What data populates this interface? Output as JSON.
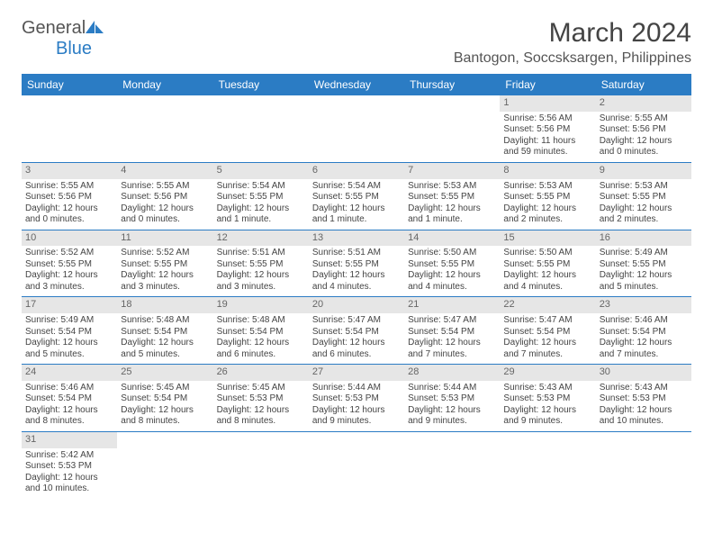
{
  "logo": {
    "part1": "General",
    "part2": "Blue"
  },
  "title": "March 2024",
  "location": "Bantogon, Soccsksargen, Philippines",
  "colors": {
    "header_bg": "#2b7cc4",
    "day_header_bg": "#e6e6e6",
    "text": "#444444"
  },
  "day_headers": [
    "Sunday",
    "Monday",
    "Tuesday",
    "Wednesday",
    "Thursday",
    "Friday",
    "Saturday"
  ],
  "weeks": [
    [
      null,
      null,
      null,
      null,
      null,
      {
        "n": "1",
        "sr": "Sunrise: 5:56 AM",
        "ss": "Sunset: 5:56 PM",
        "dl": "Daylight: 11 hours and 59 minutes."
      },
      {
        "n": "2",
        "sr": "Sunrise: 5:55 AM",
        "ss": "Sunset: 5:56 PM",
        "dl": "Daylight: 12 hours and 0 minutes."
      }
    ],
    [
      {
        "n": "3",
        "sr": "Sunrise: 5:55 AM",
        "ss": "Sunset: 5:56 PM",
        "dl": "Daylight: 12 hours and 0 minutes."
      },
      {
        "n": "4",
        "sr": "Sunrise: 5:55 AM",
        "ss": "Sunset: 5:56 PM",
        "dl": "Daylight: 12 hours and 0 minutes."
      },
      {
        "n": "5",
        "sr": "Sunrise: 5:54 AM",
        "ss": "Sunset: 5:55 PM",
        "dl": "Daylight: 12 hours and 1 minute."
      },
      {
        "n": "6",
        "sr": "Sunrise: 5:54 AM",
        "ss": "Sunset: 5:55 PM",
        "dl": "Daylight: 12 hours and 1 minute."
      },
      {
        "n": "7",
        "sr": "Sunrise: 5:53 AM",
        "ss": "Sunset: 5:55 PM",
        "dl": "Daylight: 12 hours and 1 minute."
      },
      {
        "n": "8",
        "sr": "Sunrise: 5:53 AM",
        "ss": "Sunset: 5:55 PM",
        "dl": "Daylight: 12 hours and 2 minutes."
      },
      {
        "n": "9",
        "sr": "Sunrise: 5:53 AM",
        "ss": "Sunset: 5:55 PM",
        "dl": "Daylight: 12 hours and 2 minutes."
      }
    ],
    [
      {
        "n": "10",
        "sr": "Sunrise: 5:52 AM",
        "ss": "Sunset: 5:55 PM",
        "dl": "Daylight: 12 hours and 3 minutes."
      },
      {
        "n": "11",
        "sr": "Sunrise: 5:52 AM",
        "ss": "Sunset: 5:55 PM",
        "dl": "Daylight: 12 hours and 3 minutes."
      },
      {
        "n": "12",
        "sr": "Sunrise: 5:51 AM",
        "ss": "Sunset: 5:55 PM",
        "dl": "Daylight: 12 hours and 3 minutes."
      },
      {
        "n": "13",
        "sr": "Sunrise: 5:51 AM",
        "ss": "Sunset: 5:55 PM",
        "dl": "Daylight: 12 hours and 4 minutes."
      },
      {
        "n": "14",
        "sr": "Sunrise: 5:50 AM",
        "ss": "Sunset: 5:55 PM",
        "dl": "Daylight: 12 hours and 4 minutes."
      },
      {
        "n": "15",
        "sr": "Sunrise: 5:50 AM",
        "ss": "Sunset: 5:55 PM",
        "dl": "Daylight: 12 hours and 4 minutes."
      },
      {
        "n": "16",
        "sr": "Sunrise: 5:49 AM",
        "ss": "Sunset: 5:55 PM",
        "dl": "Daylight: 12 hours and 5 minutes."
      }
    ],
    [
      {
        "n": "17",
        "sr": "Sunrise: 5:49 AM",
        "ss": "Sunset: 5:54 PM",
        "dl": "Daylight: 12 hours and 5 minutes."
      },
      {
        "n": "18",
        "sr": "Sunrise: 5:48 AM",
        "ss": "Sunset: 5:54 PM",
        "dl": "Daylight: 12 hours and 5 minutes."
      },
      {
        "n": "19",
        "sr": "Sunrise: 5:48 AM",
        "ss": "Sunset: 5:54 PM",
        "dl": "Daylight: 12 hours and 6 minutes."
      },
      {
        "n": "20",
        "sr": "Sunrise: 5:47 AM",
        "ss": "Sunset: 5:54 PM",
        "dl": "Daylight: 12 hours and 6 minutes."
      },
      {
        "n": "21",
        "sr": "Sunrise: 5:47 AM",
        "ss": "Sunset: 5:54 PM",
        "dl": "Daylight: 12 hours and 7 minutes."
      },
      {
        "n": "22",
        "sr": "Sunrise: 5:47 AM",
        "ss": "Sunset: 5:54 PM",
        "dl": "Daylight: 12 hours and 7 minutes."
      },
      {
        "n": "23",
        "sr": "Sunrise: 5:46 AM",
        "ss": "Sunset: 5:54 PM",
        "dl": "Daylight: 12 hours and 7 minutes."
      }
    ],
    [
      {
        "n": "24",
        "sr": "Sunrise: 5:46 AM",
        "ss": "Sunset: 5:54 PM",
        "dl": "Daylight: 12 hours and 8 minutes."
      },
      {
        "n": "25",
        "sr": "Sunrise: 5:45 AM",
        "ss": "Sunset: 5:54 PM",
        "dl": "Daylight: 12 hours and 8 minutes."
      },
      {
        "n": "26",
        "sr": "Sunrise: 5:45 AM",
        "ss": "Sunset: 5:53 PM",
        "dl": "Daylight: 12 hours and 8 minutes."
      },
      {
        "n": "27",
        "sr": "Sunrise: 5:44 AM",
        "ss": "Sunset: 5:53 PM",
        "dl": "Daylight: 12 hours and 9 minutes."
      },
      {
        "n": "28",
        "sr": "Sunrise: 5:44 AM",
        "ss": "Sunset: 5:53 PM",
        "dl": "Daylight: 12 hours and 9 minutes."
      },
      {
        "n": "29",
        "sr": "Sunrise: 5:43 AM",
        "ss": "Sunset: 5:53 PM",
        "dl": "Daylight: 12 hours and 9 minutes."
      },
      {
        "n": "30",
        "sr": "Sunrise: 5:43 AM",
        "ss": "Sunset: 5:53 PM",
        "dl": "Daylight: 12 hours and 10 minutes."
      }
    ],
    [
      {
        "n": "31",
        "sr": "Sunrise: 5:42 AM",
        "ss": "Sunset: 5:53 PM",
        "dl": "Daylight: 12 hours and 10 minutes."
      },
      null,
      null,
      null,
      null,
      null,
      null
    ]
  ]
}
